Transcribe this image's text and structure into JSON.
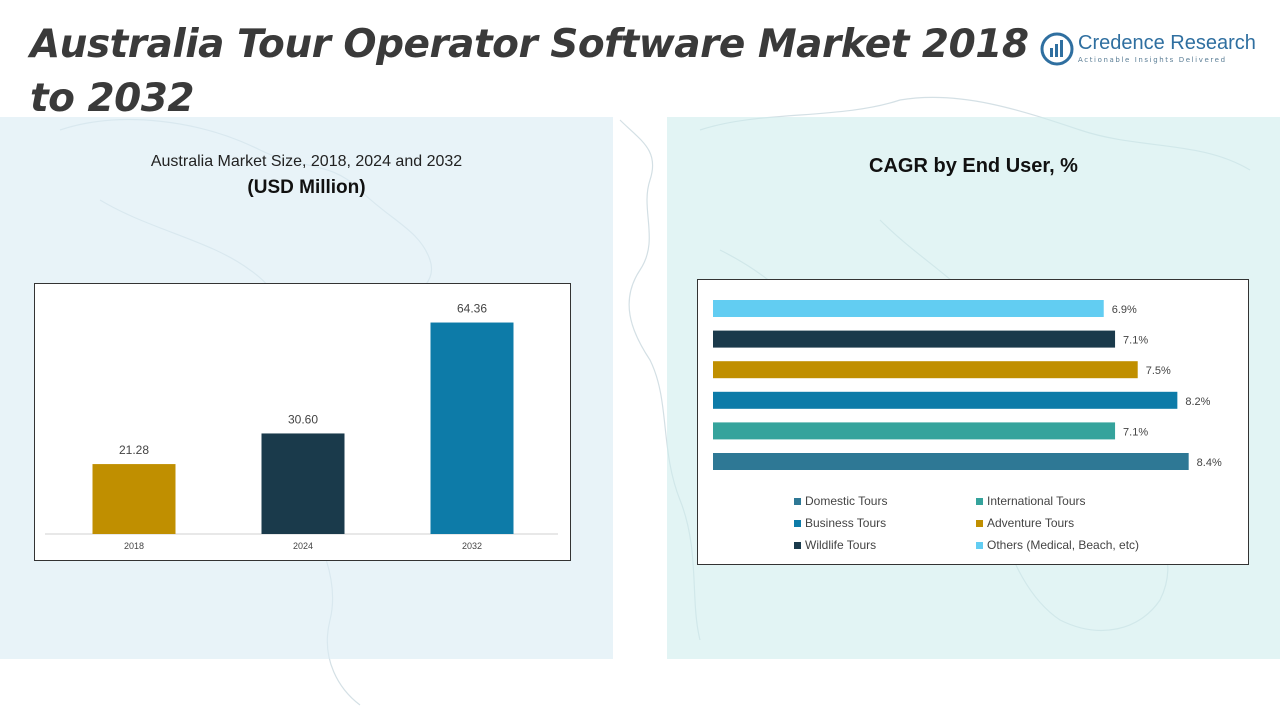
{
  "title": "Australia Tour Operator Software Market 2018 to 2032",
  "logo": {
    "name": "Credence Research",
    "tagline": "Actionable Insights Delivered"
  },
  "left_chart": {
    "title": "Australia Market Size, 2018, 2024 and 2032",
    "unit": "(USD Million)"
  },
  "right_chart": {
    "title": "CAGR by End User, %"
  },
  "chart_data": [
    {
      "type": "bar",
      "title": "Australia Market Size, 2018, 2024 and 2032",
      "subtitle": "(USD Million)",
      "categories": [
        "2018",
        "2024",
        "2032"
      ],
      "values": [
        21.28,
        30.6,
        64.36
      ],
      "value_labels": [
        "21.28",
        "30.60",
        "64.36"
      ],
      "colors": [
        "#c08f00",
        "#1a3a4b",
        "#0d7ba8"
      ],
      "ylim": [
        0,
        70
      ],
      "grid": false
    },
    {
      "type": "bar",
      "orientation": "horizontal",
      "title": "CAGR by End User, %",
      "categories": [
        "Domestic Tours",
        "International Tours",
        "Business Tours",
        "Adventure Tours",
        "Wildlife Tours",
        "Others (Medical, Beach, etc)"
      ],
      "values": [
        8.4,
        7.1,
        8.2,
        7.5,
        7.1,
        6.9
      ],
      "value_labels": [
        "8.4%",
        "7.1%",
        "8.2%",
        "7.5%",
        "7.1%",
        "6.9%"
      ],
      "colors": [
        "#2e7895",
        "#35a39c",
        "#0d7ba8",
        "#c08f00",
        "#1a3a4b",
        "#62cdf2"
      ],
      "xlim": [
        0,
        8.6
      ],
      "grid": false,
      "legend": "bottom"
    }
  ]
}
